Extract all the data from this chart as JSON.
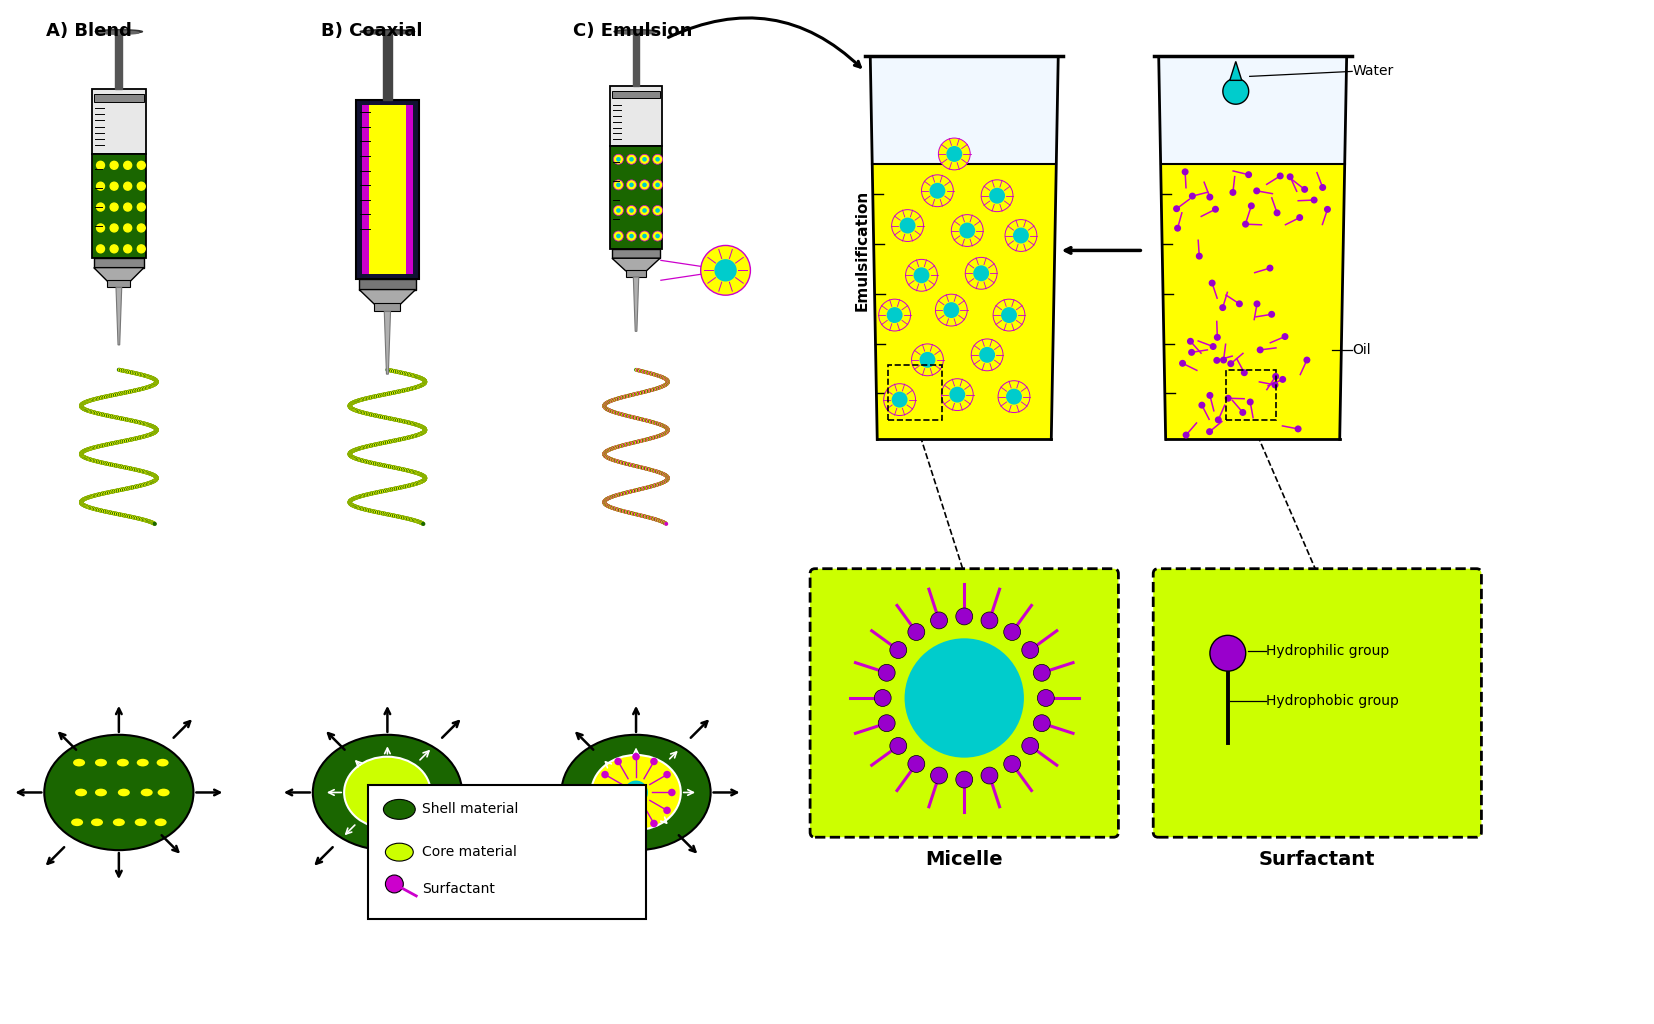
{
  "bg_color": "#ffffff",
  "label_A": "A) Blend",
  "label_B": "B) Coaxial",
  "label_C": "C) Emulsion",
  "label_emulsification": "Emulsification",
  "label_water": "Water",
  "label_oil": "Oil",
  "label_micelle": "Micelle",
  "label_surfactant_title": "Surfactant",
  "label_hydrophilic": "Hydrophilic group",
  "label_hydrophobic": "Hydrophobic group",
  "legend_shell": "Shell material",
  "legend_core": "Core material",
  "legend_surfactant": "Surfactant",
  "color_dark_green": "#1a6600",
  "color_yellow_green": "#ccff00",
  "color_yellow": "#ffff00",
  "color_bright_yellow": "#ddee00",
  "color_cyan": "#00cccc",
  "color_magenta": "#cc00cc",
  "color_gray_light": "#d8d8d8",
  "color_gray_mid": "#aaaaaa",
  "color_black": "#000000",
  "color_white": "#ffffff",
  "color_purple": "#9900cc",
  "color_teal_drop": "#00aaaa",
  "color_silver": "#c8c8c8",
  "color_needle": "#999999",
  "color_ring": "#777777"
}
